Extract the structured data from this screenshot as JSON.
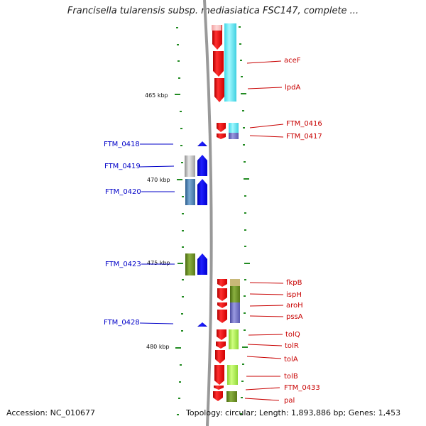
{
  "title": "Francisella tularensis subsp. mediasiatica FSC147, complete ...",
  "accession": "Accession: NC_010677",
  "topology": "Topology: circular; Length: 1,893,886 bp; Genes: 1,453",
  "scale_labels": [
    "465 kbp",
    "470 kbp",
    "475 kbp",
    "480 kbp"
  ],
  "left_gene_labels": [
    "FTM_0418",
    "FTM_0419",
    "FTM_0420",
    "FTM_0423",
    "FTM_0428"
  ],
  "right_gene_labels": [
    "aceF",
    "lpdA",
    "FTM_0416",
    "FTM_0417",
    "fkpB",
    "ispH",
    "aroH",
    "pssA",
    "tolQ",
    "tolR",
    "tolA",
    "tolB",
    "FTM_0433",
    "pal"
  ],
  "colors": {
    "forward_strand": "#ff0000",
    "reverse_strand": "#0000ff",
    "left_label": "#0000c8",
    "right_label": "#c80000",
    "backbone": "#999999",
    "ticks": "#228b22"
  }
}
